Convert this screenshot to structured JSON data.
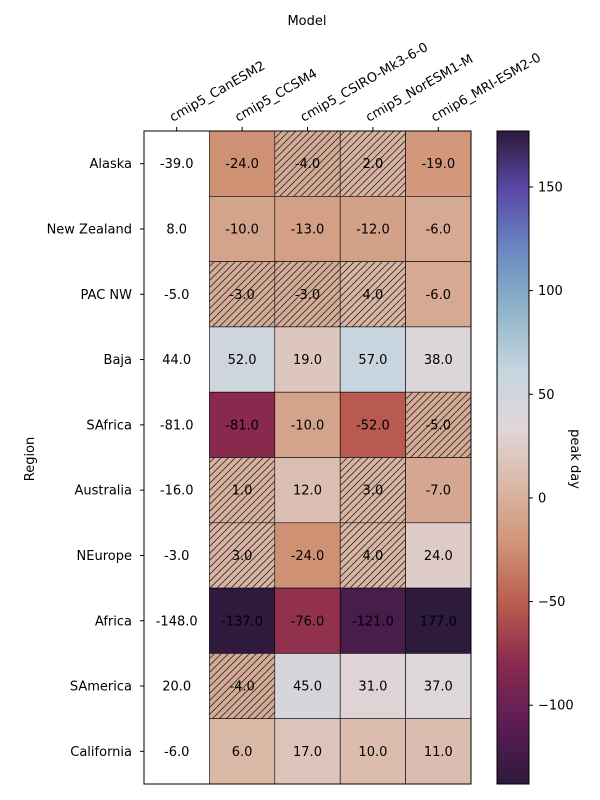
{
  "chart_data": {
    "type": "heatmap",
    "xlabel": "Model",
    "ylabel": "Region",
    "colorbar_label": "peak day",
    "colorbar_ticks": [
      150,
      100,
      50,
      0,
      -50,
      -100
    ],
    "colorbar_range": [
      -138,
      177
    ],
    "colormap": [
      "#2d1a3c",
      "#5b1d55",
      "#89294e",
      "#b85a4f",
      "#cf9275",
      "#dab7a4",
      "#e0d6da",
      "#c4d5df",
      "#8fb4c8",
      "#6a88c1",
      "#5a49a8",
      "#2d1a3c"
    ],
    "hatch_color": "#333333",
    "columns": [
      "cmip5_CanESM2",
      "cmip5_CCSM4",
      "cmip5_CSIRO-Mk3-6-0",
      "cmip5_NorESM1-M",
      "cmip6_MRI-ESM2-0"
    ],
    "rows": [
      "Alaska",
      "New Zealand",
      "PAC NW",
      "Baja",
      "SAfrica",
      "Australia",
      "NEurope",
      "Africa",
      "SAmerica",
      "California"
    ],
    "values": [
      [
        -39.0,
        -24.0,
        -4.0,
        2.0,
        -19.0
      ],
      [
        8.0,
        -10.0,
        -13.0,
        -12.0,
        -6.0
      ],
      [
        -5.0,
        -3.0,
        -3.0,
        4.0,
        -6.0
      ],
      [
        44.0,
        52.0,
        19.0,
        57.0,
        38.0
      ],
      [
        -81.0,
        -81.0,
        -10.0,
        -52.0,
        -5.0
      ],
      [
        -16.0,
        1.0,
        12.0,
        3.0,
        -7.0
      ],
      [
        -3.0,
        3.0,
        -24.0,
        4.0,
        24.0
      ],
      [
        -148.0,
        -137.0,
        -76.0,
        -121.0,
        177.0
      ],
      [
        20.0,
        -4.0,
        45.0,
        31.0,
        37.0
      ],
      [
        -6.0,
        6.0,
        17.0,
        10.0,
        11.0
      ]
    ],
    "cell_labels": [
      [
        "-39.0",
        "-24.0",
        "-4.0",
        "2.0",
        "-19.0"
      ],
      [
        "8.0",
        "-10.0",
        "-13.0",
        "-12.0",
        "-6.0"
      ],
      [
        "-5.0",
        "-3.0",
        "-3.0",
        "4.0",
        "-6.0"
      ],
      [
        "44.0",
        "52.0",
        "19.0",
        "57.0",
        "38.0"
      ],
      [
        "-81.0",
        "-81.0",
        "-10.0",
        "-52.0",
        "-5.0"
      ],
      [
        "-16.0",
        "1.0",
        "12.0",
        "3.0",
        "-7.0"
      ],
      [
        "-3.0",
        "3.0",
        "-24.0",
        "4.0",
        "24.0"
      ],
      [
        "-148.0",
        "-137.0",
        "-76.0",
        "-121.0",
        "177.0"
      ],
      [
        "20.0",
        "-4.0",
        "45.0",
        "31.0",
        "37.0"
      ],
      [
        "-6.0",
        "6.0",
        "17.0",
        "10.0",
        "11.0"
      ]
    ],
    "hatched": [
      [
        false,
        false,
        true,
        true,
        false
      ],
      [
        false,
        false,
        false,
        false,
        false
      ],
      [
        false,
        true,
        true,
        true,
        false
      ],
      [
        false,
        false,
        false,
        false,
        false
      ],
      [
        false,
        false,
        false,
        false,
        true
      ],
      [
        false,
        true,
        false,
        true,
        false
      ],
      [
        false,
        true,
        false,
        true,
        false
      ],
      [
        false,
        false,
        false,
        false,
        false
      ],
      [
        false,
        true,
        false,
        false,
        false
      ],
      [
        false,
        false,
        false,
        false,
        false
      ]
    ],
    "first_column_uncolored": true
  }
}
